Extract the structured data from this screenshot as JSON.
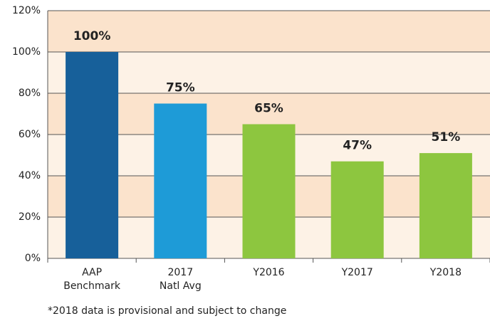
{
  "chart_data": {
    "type": "bar",
    "categories": [
      "AAP Benchmark",
      "2017 Natl Avg",
      "Y2016",
      "Y2017",
      "Y2018"
    ],
    "values": [
      100,
      75,
      65,
      47,
      51
    ],
    "value_labels": [
      "100%",
      "75%",
      "65%",
      "47%",
      "51%"
    ],
    "colors": [
      "#17609a",
      "#1e9bd7",
      "#8dc63f",
      "#8dc63f",
      "#8dc63f"
    ],
    "band_colors": [
      "#fdf2e6",
      "#fbe3cc"
    ],
    "ylim": [
      0,
      120
    ],
    "yticks": [
      {
        "value": 0,
        "label": "0%"
      },
      {
        "value": 20,
        "label": "20%"
      },
      {
        "value": 40,
        "label": "40%"
      },
      {
        "value": 60,
        "label": "60%"
      },
      {
        "value": 80,
        "label": "80%"
      },
      {
        "value": 100,
        "label": "100%"
      },
      {
        "value": 120,
        "label": "120%"
      }
    ],
    "grid": true,
    "footnote": "*2018 data is provisional and subject to change"
  }
}
